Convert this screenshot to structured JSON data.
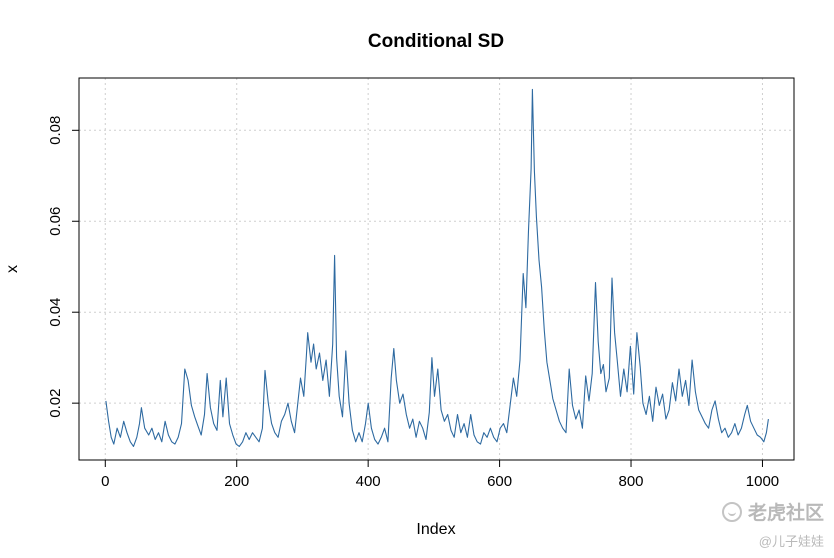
{
  "chart_data": {
    "type": "line",
    "title": "Conditional SD",
    "xlabel": "Index",
    "ylabel": "x",
    "xlim": [
      -40,
      1048
    ],
    "ylim": [
      0.0075,
      0.0915
    ],
    "xticks": [
      0,
      200,
      400,
      600,
      800,
      1000
    ],
    "yticks": [
      0.02,
      0.04,
      0.06,
      0.08
    ],
    "xtick_labels": [
      "0",
      "200",
      "400",
      "600",
      "800",
      "1000"
    ],
    "ytick_labels": [
      "0.02",
      "0.04",
      "0.06",
      "0.08"
    ],
    "grid": true,
    "line_color": "#2e6aa1",
    "series": [
      {
        "name": "x",
        "points": [
          [
            1,
            0.0205
          ],
          [
            5,
            0.016
          ],
          [
            9,
            0.0125
          ],
          [
            13,
            0.011
          ],
          [
            18,
            0.0145
          ],
          [
            23,
            0.0125
          ],
          [
            28,
            0.016
          ],
          [
            33,
            0.0135
          ],
          [
            38,
            0.0115
          ],
          [
            43,
            0.0105
          ],
          [
            48,
            0.0125
          ],
          [
            52,
            0.0155
          ],
          [
            55,
            0.019
          ],
          [
            60,
            0.0145
          ],
          [
            66,
            0.013
          ],
          [
            71,
            0.0145
          ],
          [
            76,
            0.012
          ],
          [
            81,
            0.0135
          ],
          [
            86,
            0.0115
          ],
          [
            91,
            0.016
          ],
          [
            96,
            0.013
          ],
          [
            101,
            0.0115
          ],
          [
            106,
            0.011
          ],
          [
            111,
            0.0125
          ],
          [
            116,
            0.0155
          ],
          [
            121,
            0.0275
          ],
          [
            126,
            0.025
          ],
          [
            131,
            0.0195
          ],
          [
            136,
            0.017
          ],
          [
            141,
            0.015
          ],
          [
            146,
            0.013
          ],
          [
            151,
            0.0175
          ],
          [
            155,
            0.0265
          ],
          [
            160,
            0.019
          ],
          [
            165,
            0.0155
          ],
          [
            170,
            0.014
          ],
          [
            175,
            0.025
          ],
          [
            179,
            0.017
          ],
          [
            184,
            0.0255
          ],
          [
            189,
            0.0155
          ],
          [
            194,
            0.013
          ],
          [
            199,
            0.011
          ],
          [
            204,
            0.0105
          ],
          [
            209,
            0.0115
          ],
          [
            214,
            0.0135
          ],
          [
            219,
            0.012
          ],
          [
            224,
            0.0135
          ],
          [
            229,
            0.0125
          ],
          [
            234,
            0.0115
          ],
          [
            239,
            0.0145
          ],
          [
            243,
            0.0272
          ],
          [
            248,
            0.02
          ],
          [
            253,
            0.0155
          ],
          [
            258,
            0.0135
          ],
          [
            263,
            0.0125
          ],
          [
            268,
            0.016
          ],
          [
            273,
            0.0175
          ],
          [
            278,
            0.02
          ],
          [
            283,
            0.016
          ],
          [
            288,
            0.0135
          ],
          [
            293,
            0.02
          ],
          [
            297,
            0.0255
          ],
          [
            302,
            0.0215
          ],
          [
            306,
            0.0305
          ],
          [
            308,
            0.0355
          ],
          [
            313,
            0.029
          ],
          [
            317,
            0.033
          ],
          [
            321,
            0.0275
          ],
          [
            326,
            0.031
          ],
          [
            331,
            0.025
          ],
          [
            336,
            0.0295
          ],
          [
            341,
            0.0215
          ],
          [
            346,
            0.033
          ],
          [
            349,
            0.0525
          ],
          [
            352,
            0.03
          ],
          [
            356,
            0.0215
          ],
          [
            361,
            0.017
          ],
          [
            366,
            0.0315
          ],
          [
            371,
            0.02
          ],
          [
            376,
            0.014
          ],
          [
            381,
            0.0115
          ],
          [
            386,
            0.0135
          ],
          [
            391,
            0.0115
          ],
          [
            396,
            0.0155
          ],
          [
            400,
            0.02
          ],
          [
            405,
            0.0145
          ],
          [
            410,
            0.012
          ],
          [
            415,
            0.011
          ],
          [
            420,
            0.0125
          ],
          [
            425,
            0.0145
          ],
          [
            430,
            0.0115
          ],
          [
            435,
            0.0255
          ],
          [
            439,
            0.032
          ],
          [
            443,
            0.025
          ],
          [
            448,
            0.02
          ],
          [
            453,
            0.022
          ],
          [
            458,
            0.0175
          ],
          [
            463,
            0.0145
          ],
          [
            468,
            0.0165
          ],
          [
            473,
            0.0125
          ],
          [
            478,
            0.016
          ],
          [
            483,
            0.0145
          ],
          [
            488,
            0.012
          ],
          [
            493,
            0.018
          ],
          [
            497,
            0.03
          ],
          [
            501,
            0.0215
          ],
          [
            506,
            0.0275
          ],
          [
            511,
            0.0185
          ],
          [
            516,
            0.016
          ],
          [
            521,
            0.0175
          ],
          [
            526,
            0.014
          ],
          [
            531,
            0.0125
          ],
          [
            536,
            0.0175
          ],
          [
            541,
            0.0135
          ],
          [
            546,
            0.0155
          ],
          [
            551,
            0.0125
          ],
          [
            556,
            0.0175
          ],
          [
            561,
            0.013
          ],
          [
            566,
            0.0115
          ],
          [
            571,
            0.011
          ],
          [
            576,
            0.0135
          ],
          [
            581,
            0.0125
          ],
          [
            586,
            0.0145
          ],
          [
            591,
            0.0125
          ],
          [
            596,
            0.0115
          ],
          [
            601,
            0.0145
          ],
          [
            606,
            0.0155
          ],
          [
            611,
            0.0135
          ],
          [
            616,
            0.0195
          ],
          [
            621,
            0.0255
          ],
          [
            626,
            0.0215
          ],
          [
            631,
            0.0295
          ],
          [
            636,
            0.0485
          ],
          [
            640,
            0.041
          ],
          [
            644,
            0.058
          ],
          [
            648,
            0.0715
          ],
          [
            650,
            0.089
          ],
          [
            653,
            0.071
          ],
          [
            656,
            0.061
          ],
          [
            660,
            0.0515
          ],
          [
            664,
            0.0455
          ],
          [
            668,
            0.036
          ],
          [
            672,
            0.029
          ],
          [
            676,
            0.0255
          ],
          [
            681,
            0.021
          ],
          [
            686,
            0.0185
          ],
          [
            691,
            0.016
          ],
          [
            696,
            0.0145
          ],
          [
            701,
            0.0135
          ],
          [
            706,
            0.0275
          ],
          [
            711,
            0.0195
          ],
          [
            716,
            0.0165
          ],
          [
            721,
            0.0185
          ],
          [
            726,
            0.0145
          ],
          [
            731,
            0.026
          ],
          [
            736,
            0.0205
          ],
          [
            741,
            0.0265
          ],
          [
            746,
            0.0465
          ],
          [
            750,
            0.0335
          ],
          [
            754,
            0.0265
          ],
          [
            758,
            0.0285
          ],
          [
            762,
            0.0225
          ],
          [
            767,
            0.0255
          ],
          [
            771,
            0.0475
          ],
          [
            775,
            0.0355
          ],
          [
            779,
            0.0295
          ],
          [
            784,
            0.0215
          ],
          [
            789,
            0.0275
          ],
          [
            794,
            0.0225
          ],
          [
            799,
            0.0325
          ],
          [
            804,
            0.022
          ],
          [
            809,
            0.0355
          ],
          [
            814,
            0.028
          ],
          [
            818,
            0.02
          ],
          [
            823,
            0.0175
          ],
          [
            828,
            0.0215
          ],
          [
            833,
            0.016
          ],
          [
            838,
            0.0235
          ],
          [
            843,
            0.0195
          ],
          [
            848,
            0.022
          ],
          [
            853,
            0.0165
          ],
          [
            858,
            0.0185
          ],
          [
            863,
            0.0245
          ],
          [
            868,
            0.0205
          ],
          [
            873,
            0.0275
          ],
          [
            878,
            0.0215
          ],
          [
            883,
            0.025
          ],
          [
            888,
            0.0195
          ],
          [
            893,
            0.0295
          ],
          [
            898,
            0.0225
          ],
          [
            903,
            0.0185
          ],
          [
            908,
            0.017
          ],
          [
            913,
            0.0155
          ],
          [
            918,
            0.0145
          ],
          [
            923,
            0.0185
          ],
          [
            928,
            0.0205
          ],
          [
            933,
            0.0165
          ],
          [
            938,
            0.0135
          ],
          [
            943,
            0.0145
          ],
          [
            948,
            0.0125
          ],
          [
            953,
            0.0135
          ],
          [
            958,
            0.0155
          ],
          [
            963,
            0.013
          ],
          [
            968,
            0.0145
          ],
          [
            973,
            0.0175
          ],
          [
            977,
            0.0195
          ],
          [
            982,
            0.016
          ],
          [
            987,
            0.0145
          ],
          [
            992,
            0.013
          ],
          [
            997,
            0.0125
          ],
          [
            1002,
            0.0115
          ],
          [
            1006,
            0.0135
          ],
          [
            1009,
            0.0165
          ]
        ]
      }
    ]
  },
  "watermark": {
    "main": "老虎社区",
    "sub": "@儿子娃娃",
    "icon": "tiger-community-logo-icon"
  }
}
